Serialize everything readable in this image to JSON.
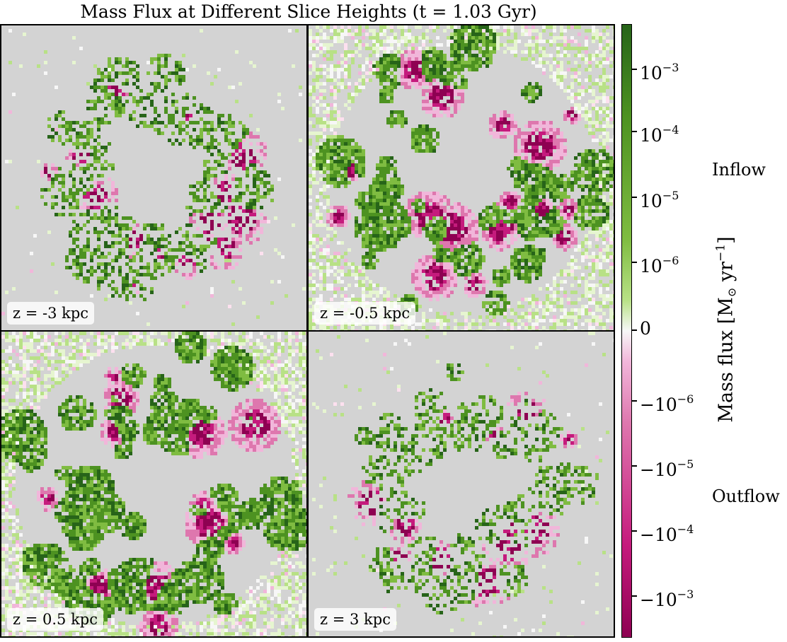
{
  "chart_data": {
    "type": "heatmap",
    "title": "Mass Flux at Different Slice Heights (t = 1.03 Gyr)",
    "panels": [
      {
        "label": "z = -3 kpc",
        "z_kpc": -3
      },
      {
        "label": "z = -0.5 kpc",
        "z_kpc": -0.5
      },
      {
        "label": "z = 0.5 kpc",
        "z_kpc": 0.5
      },
      {
        "label": "z = 3 kpc",
        "z_kpc": 3
      }
    ],
    "colorbar": {
      "label": "Mass flux [M_sun yr^-1]",
      "scale": "symlog",
      "colormap": "PiYG",
      "ticks": [
        {
          "value": 0.001,
          "mantissa": "10",
          "exp": "−3"
        },
        {
          "value": 0.0001,
          "mantissa": "10",
          "exp": "−4"
        },
        {
          "value": 1e-05,
          "mantissa": "10",
          "exp": "−5"
        },
        {
          "value": 1e-06,
          "mantissa": "10",
          "exp": "−6"
        },
        {
          "value": 0,
          "mantissa": "0",
          "exp": ""
        },
        {
          "value": -1e-06,
          "mantissa": "−10",
          "exp": "−6"
        },
        {
          "value": -1e-05,
          "mantissa": "−10",
          "exp": "−5"
        },
        {
          "value": -0.0001,
          "mantissa": "−10",
          "exp": "−4"
        },
        {
          "value": -0.001,
          "mantissa": "−10",
          "exp": "−3"
        }
      ],
      "annotations": {
        "upper": "Inflow",
        "lower": "Outflow"
      }
    }
  },
  "colors": {
    "inflow_dark": "#276419",
    "inflow_light": "#b8e186",
    "neutral": "#f7f7f7",
    "outflow_light": "#f1b6da",
    "outflow_dark": "#8e0152",
    "empty": "#d3d3d3"
  }
}
